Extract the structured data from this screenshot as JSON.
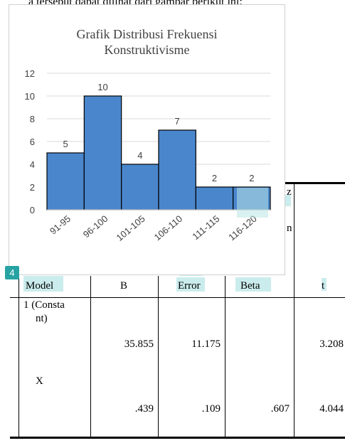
{
  "top_text": "a tersebut dapat dilihat dari gambar berikut ini:",
  "chart_data": {
    "type": "bar",
    "title_line1": "Grafik Distribusi Frekuensi",
    "title_line2": "Konstruktivisme",
    "categories": [
      "91-95",
      "96-100",
      "101-105",
      "106-110",
      "111-115",
      "116-120"
    ],
    "values": [
      5,
      10,
      4,
      7,
      2,
      2
    ],
    "y_ticks": [
      "0",
      "2",
      "4",
      "6",
      "8",
      "10",
      "12"
    ],
    "ylim": [
      0,
      12
    ],
    "bar_color": "#4a86cc",
    "grid": true
  },
  "badge": "4",
  "table": {
    "partial_header_1": "z",
    "partial_header_2": "n",
    "headers": [
      "Model",
      "B",
      "Error",
      "Beta",
      "t"
    ],
    "rows": [
      {
        "model": "1 (Consta",
        "model2": "nt)",
        "b": "35.855",
        "error": "11.175",
        "beta": "",
        "t": "3.208"
      },
      {
        "model": "X",
        "model2": "",
        "b": ".439",
        "error": ".109",
        "beta": ".607",
        "t": "4.044"
      }
    ]
  }
}
